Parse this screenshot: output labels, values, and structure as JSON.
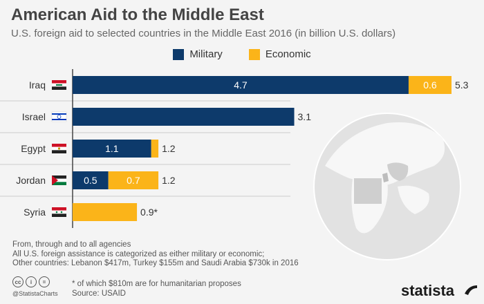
{
  "title": "American Aid to the Middle East",
  "subtitle": "U.S. foreign aid to selected countries in the Middle East 2016 (in billion U.S. dollars)",
  "colors": {
    "military": "#0d3a6b",
    "economic": "#fbb419",
    "background": "#f4f4f4"
  },
  "chart_data": {
    "type": "bar",
    "orientation": "horizontal",
    "stacked": true,
    "categories": [
      "Iraq",
      "Israel",
      "Egypt",
      "Jordan",
      "Syria"
    ],
    "series": [
      {
        "name": "Military",
        "values": [
          4.7,
          3.1,
          1.1,
          0.5,
          0
        ]
      },
      {
        "name": "Economic",
        "values": [
          0.6,
          0,
          0.1,
          0.7,
          0.9
        ]
      }
    ],
    "segment_labels": {
      "Military": [
        "4.7",
        "",
        "1.1",
        "0.5",
        ""
      ],
      "Economic": [
        "0.6",
        "",
        "",
        "0.7",
        ""
      ]
    },
    "totals": [
      "5.3",
      "3.1",
      "1.2",
      "1.2",
      "0.9*"
    ],
    "xlim": [
      0,
      5.3
    ],
    "legend_position": "top-center",
    "grid": false
  },
  "notes": [
    "From, through and to all agencies",
    "All U.S. foreign assistance is categorized as either military or economic;",
    "Other countries: Lebanon $417m, Turkey $155m and Saudi Arabia $730k in 2016"
  ],
  "footnote": "* of which $810m are for humanitarian proposes",
  "source": "Source: USAID",
  "handle": "@StatistaCharts",
  "brand": "statista",
  "license_icons": [
    "cc",
    "i",
    "="
  ]
}
